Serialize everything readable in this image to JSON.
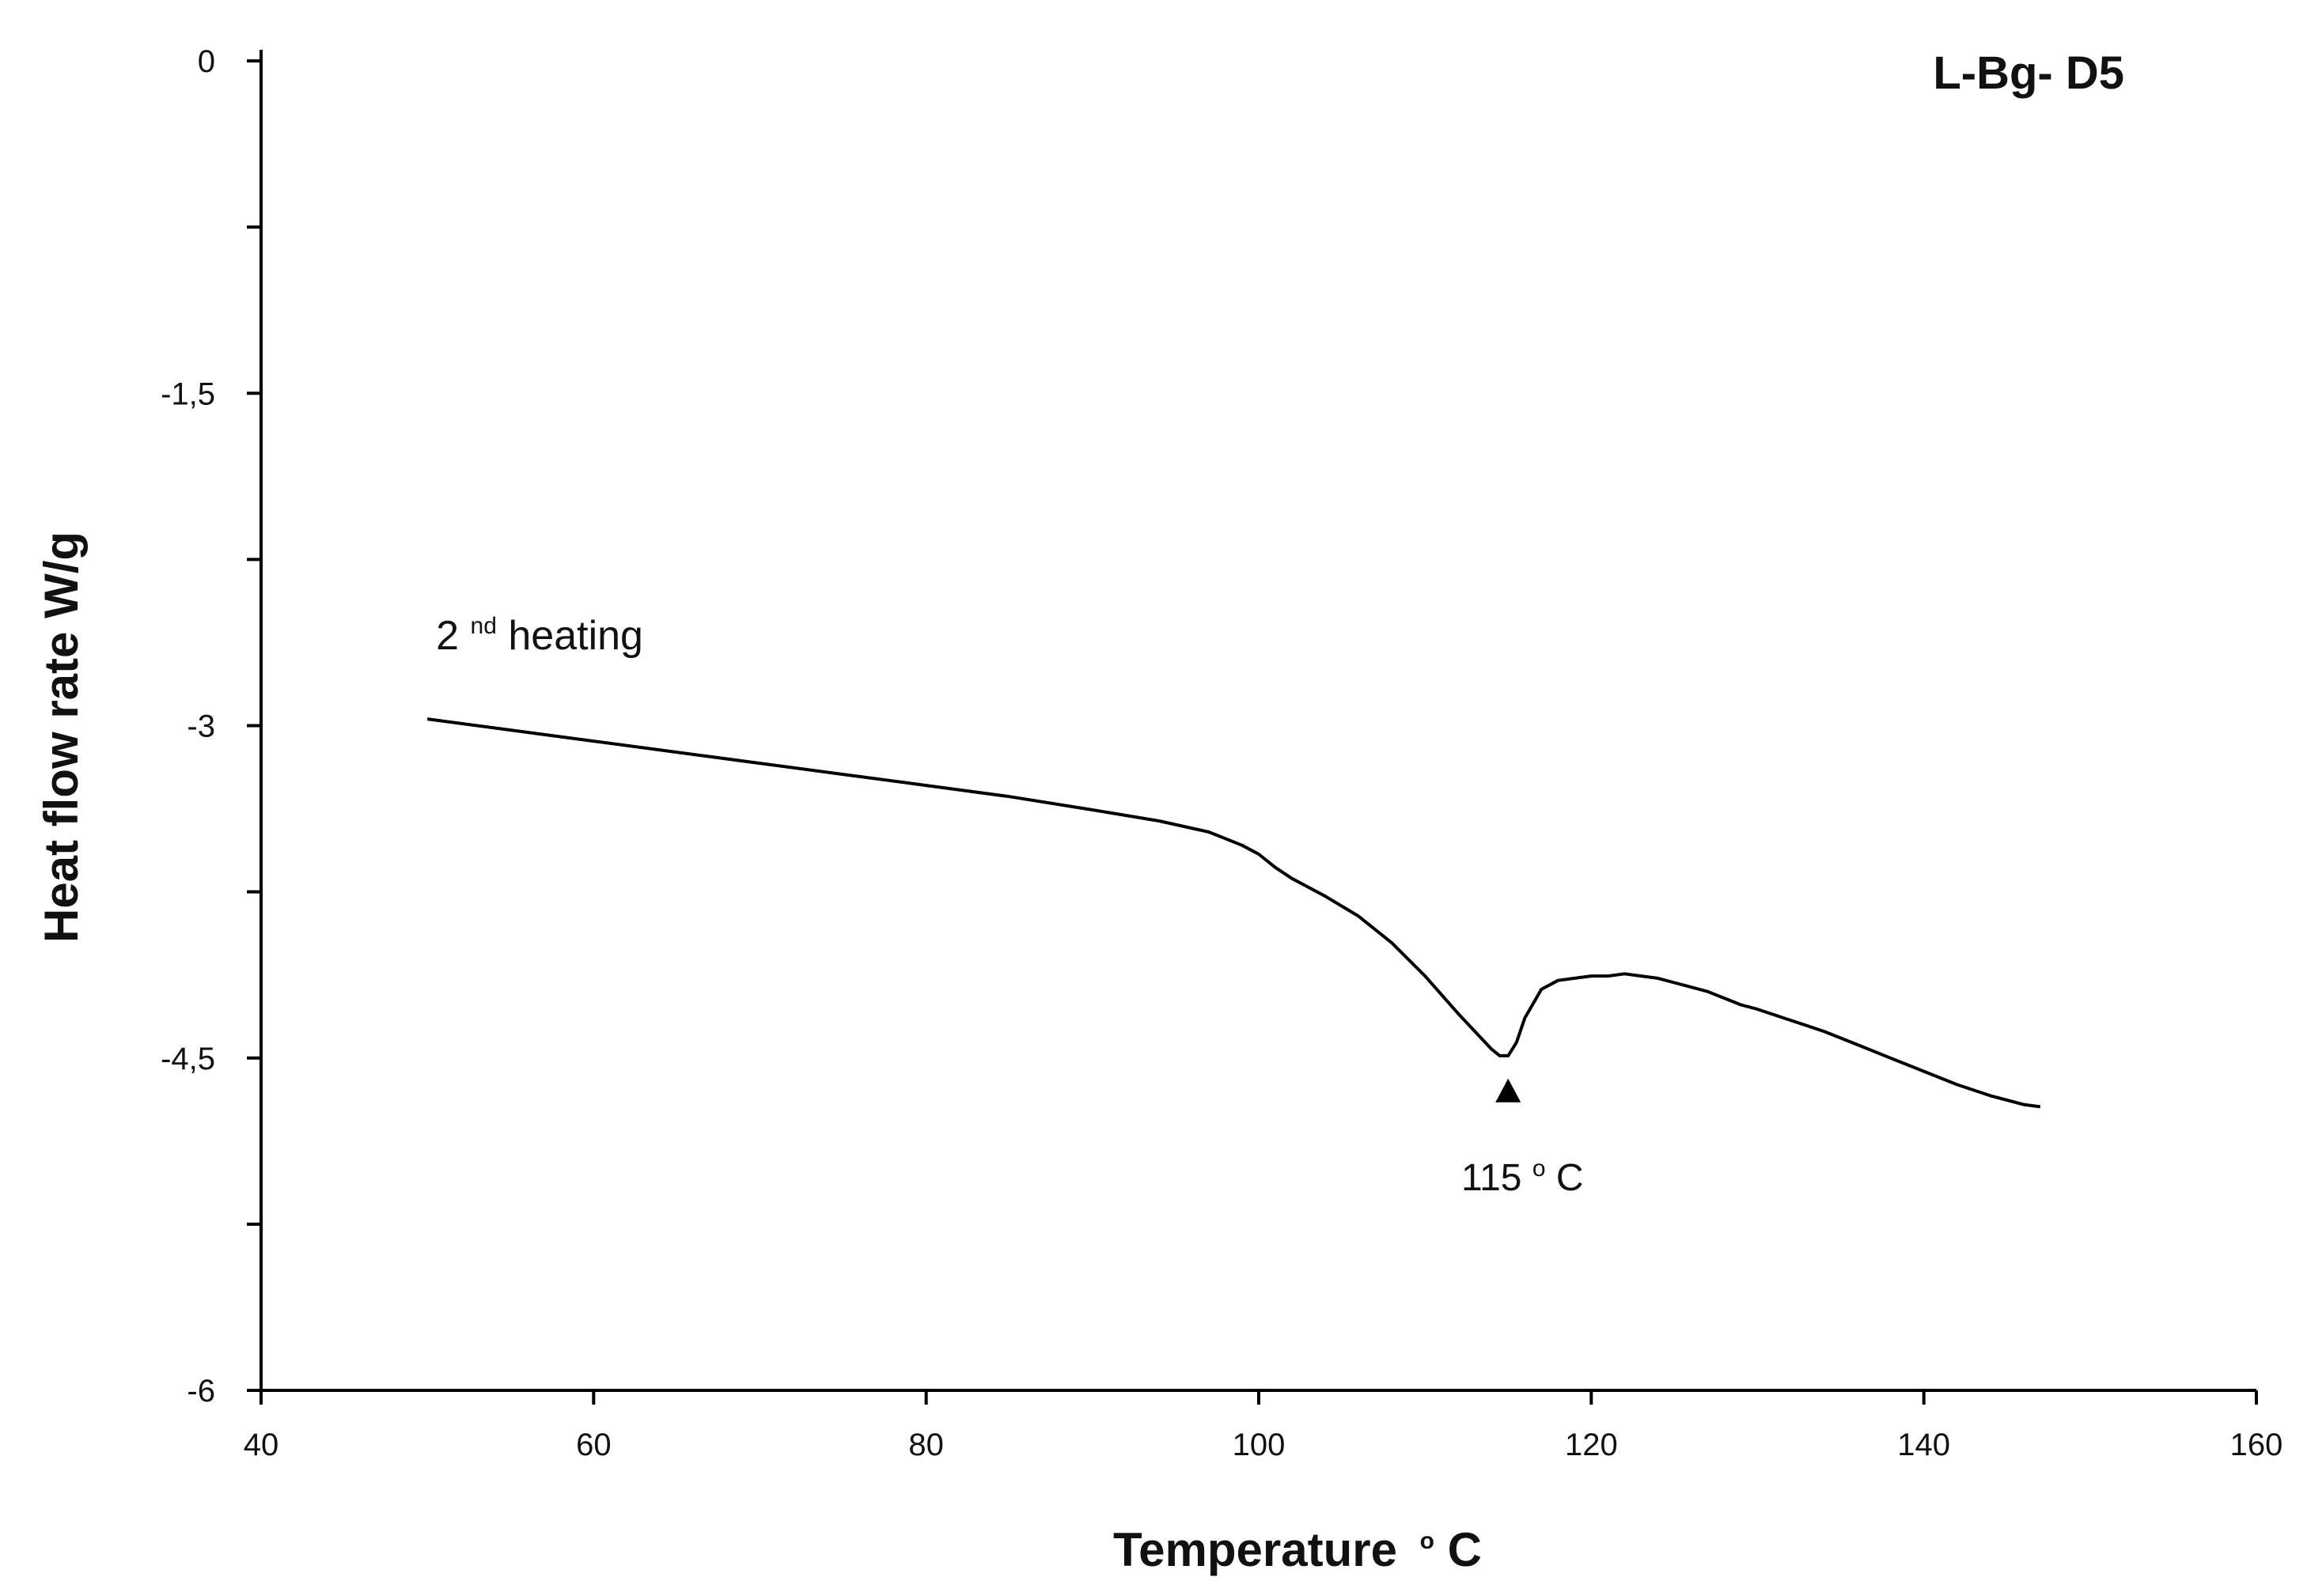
{
  "chart_data": {
    "type": "line",
    "title": "L-Bg- D5",
    "xlabel": "Temperature",
    "xlabel_unit_sup": "o",
    "xlabel_unit": "C",
    "ylabel": "Heat flow rate W/g",
    "xlim": [
      40,
      160
    ],
    "ylim": [
      -6,
      0
    ],
    "x_ticks": [
      40,
      60,
      80,
      100,
      120,
      140,
      160
    ],
    "x_tick_labels": [
      "40",
      "60",
      "80",
      "100",
      "120",
      "140",
      "160"
    ],
    "y_ticks": [
      0,
      -0.75,
      -1.5,
      -2.25,
      -3,
      -3.75,
      -4.5,
      -5.25,
      -6
    ],
    "y_tick_labels": [
      "0",
      "",
      "-1,5",
      "",
      "-3",
      "",
      "-4,5",
      "",
      "-6"
    ],
    "grid": false,
    "series": [
      {
        "name": "2nd heating",
        "x": [
          50,
          55,
          60,
          65,
          70,
          75,
          80,
          85,
          90,
          94,
          97,
          99,
          100,
          101,
          102,
          104,
          106,
          108,
          110,
          112,
          113,
          114,
          114.5,
          115,
          115.5,
          116,
          117,
          118,
          119,
          120,
          121,
          122,
          123,
          124,
          125,
          126,
          127,
          128,
          129,
          130,
          132,
          134,
          136,
          138,
          140,
          142,
          144,
          146,
          147
        ],
        "y": [
          -2.97,
          -3.02,
          -3.07,
          -3.12,
          -3.17,
          -3.22,
          -3.27,
          -3.32,
          -3.38,
          -3.43,
          -3.48,
          -3.54,
          -3.58,
          -3.64,
          -3.69,
          -3.77,
          -3.86,
          -3.98,
          -4.13,
          -4.3,
          -4.38,
          -4.46,
          -4.49,
          -4.49,
          -4.43,
          -4.32,
          -4.19,
          -4.15,
          -4.14,
          -4.13,
          -4.13,
          -4.12,
          -4.13,
          -4.14,
          -4.16,
          -4.18,
          -4.2,
          -4.23,
          -4.26,
          -4.28,
          -4.33,
          -4.38,
          -4.44,
          -4.5,
          -4.56,
          -4.62,
          -4.67,
          -4.71,
          -4.72
        ]
      }
    ],
    "annotations": [
      {
        "text_main": "2",
        "text_sup": "nd",
        "text_rest": " heating",
        "x": 51,
        "y": -2.62
      },
      {
        "text_num": "115 ",
        "text_sup": "o",
        "text_unit": "C",
        "marker": "triangle-up",
        "x": 115,
        "y": -4.65
      }
    ]
  }
}
